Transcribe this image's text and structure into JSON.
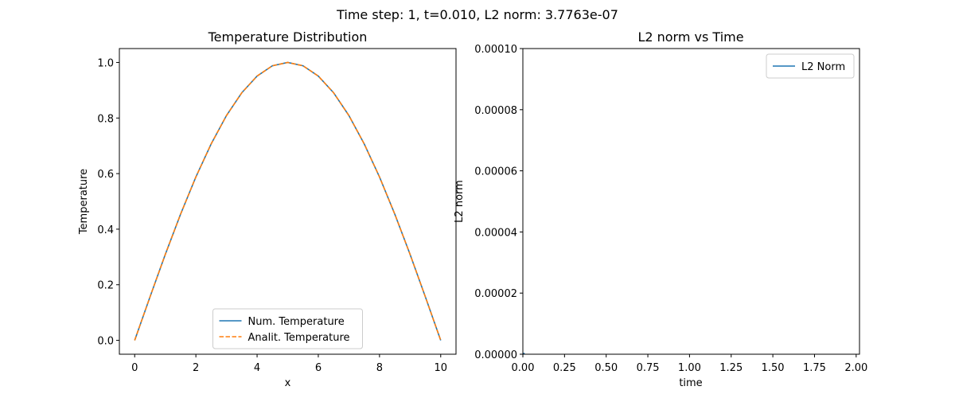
{
  "figure": {
    "suptitle": "Time step: 1, t=0.010, L2 norm: 3.7763e-07"
  },
  "chart_data": [
    {
      "type": "line",
      "title": "Temperature Distribution",
      "xlabel": "x",
      "ylabel": "Temperature",
      "xlim": [
        -0.5,
        10.5
      ],
      "ylim": [
        -0.05,
        1.05
      ],
      "xticks": [
        "0",
        "2",
        "4",
        "6",
        "8",
        "10"
      ],
      "yticks": [
        "0.0",
        "0.2",
        "0.4",
        "0.6",
        "0.8",
        "1.0"
      ],
      "legend_position": "lower center",
      "grid": false,
      "series": [
        {
          "name": "Num. Temperature",
          "color": "#1f77b4",
          "style": "solid",
          "x": [
            0,
            0.5,
            1,
            1.5,
            2,
            2.5,
            3,
            3.5,
            4,
            4.5,
            5,
            5.5,
            6,
            6.5,
            7,
            7.5,
            8,
            8.5,
            9,
            9.5,
            10
          ],
          "y": [
            0,
            0.156,
            0.309,
            0.454,
            0.588,
            0.707,
            0.809,
            0.891,
            0.951,
            0.988,
            1.0,
            0.988,
            0.951,
            0.891,
            0.809,
            0.707,
            0.588,
            0.454,
            0.309,
            0.156,
            0
          ]
        },
        {
          "name": "Analit. Temperature",
          "color": "#ff7f0e",
          "style": "dashed",
          "x": [
            0,
            0.5,
            1,
            1.5,
            2,
            2.5,
            3,
            3.5,
            4,
            4.5,
            5,
            5.5,
            6,
            6.5,
            7,
            7.5,
            8,
            8.5,
            9,
            9.5,
            10
          ],
          "y": [
            0,
            0.156,
            0.309,
            0.454,
            0.588,
            0.707,
            0.809,
            0.891,
            0.951,
            0.988,
            1.0,
            0.988,
            0.951,
            0.891,
            0.809,
            0.707,
            0.588,
            0.454,
            0.309,
            0.156,
            0
          ]
        }
      ]
    },
    {
      "type": "line",
      "title": "L2 norm vs Time",
      "xlabel": "time",
      "ylabel": "L2 norm",
      "xlim": [
        0,
        2.02
      ],
      "ylim": [
        0,
        0.0001
      ],
      "xticks": [
        "0.00",
        "0.25",
        "0.50",
        "0.75",
        "1.00",
        "1.25",
        "1.50",
        "1.75",
        "2.00"
      ],
      "yticks": [
        "0.00000",
        "0.00002",
        "0.00004",
        "0.00006",
        "0.00008",
        "0.00010"
      ],
      "legend_position": "upper right",
      "grid": false,
      "series": [
        {
          "name": "L2 Norm",
          "color": "#1f77b4",
          "style": "solid",
          "x": [
            0,
            0.01
          ],
          "y": [
            0,
            3.7763e-07
          ]
        }
      ]
    }
  ]
}
